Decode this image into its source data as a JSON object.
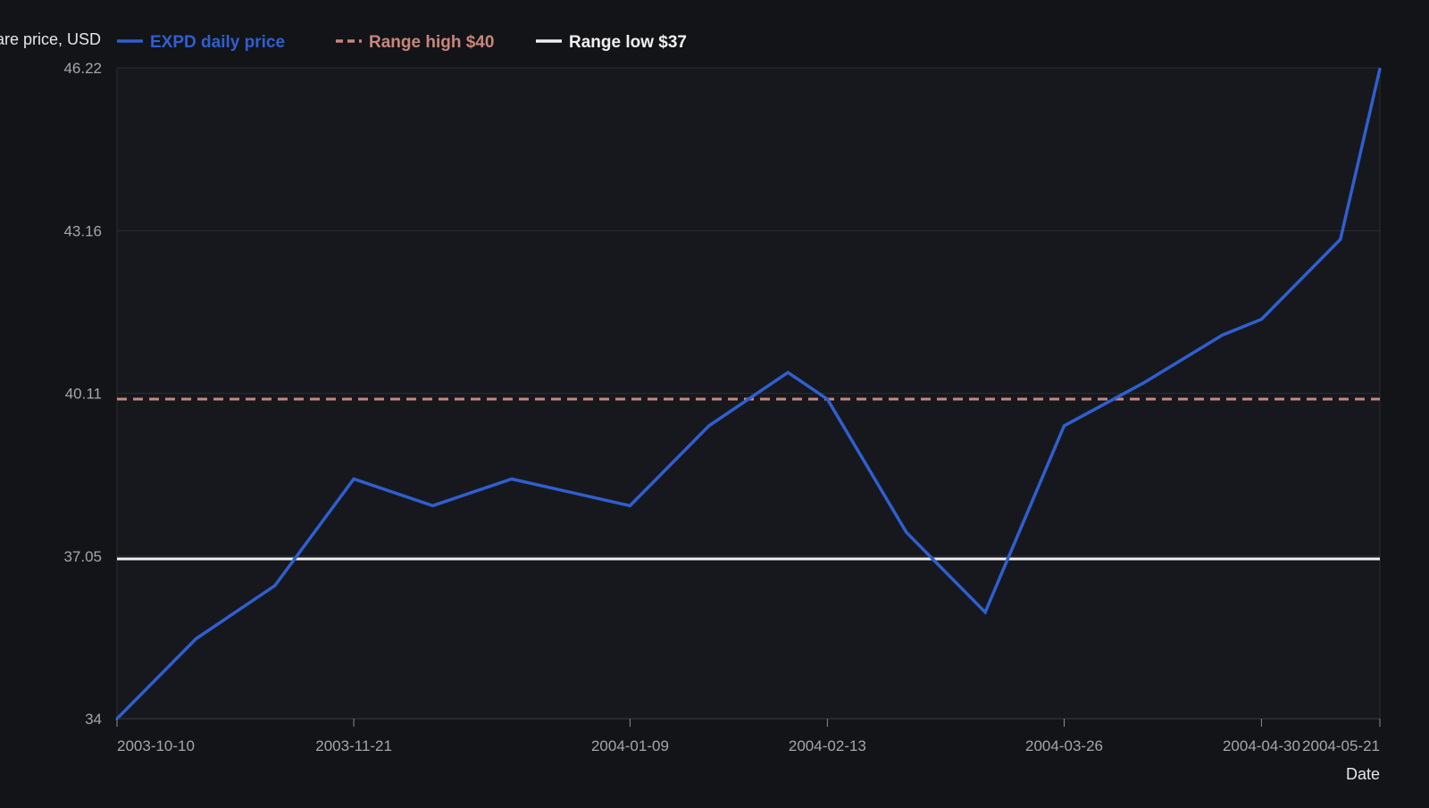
{
  "chart_data": {
    "type": "line",
    "ylabel": "Share price, USD",
    "xlabel": "Date",
    "ylim": [
      34,
      46.22
    ],
    "y_ticks": [
      "34",
      "37.05",
      "40.11",
      "43.16",
      "46.22"
    ],
    "x_ticks": [
      "2003-10-10",
      "2003-11-21",
      "2004-01-09",
      "2004-02-13",
      "2004-03-26",
      "2004-04-30",
      "2004-05-21"
    ],
    "x_range": [
      "2003-10-10",
      "2004-05-21"
    ],
    "grid": true,
    "legend_position": "top-left",
    "series": [
      {
        "name": "EXPD daily price",
        "color": "#2f5fd0",
        "style": "solid",
        "x": [
          "2003-10-10",
          "2003-10-24",
          "2003-11-07",
          "2003-11-21",
          "2003-12-05",
          "2003-12-19",
          "2004-01-09",
          "2004-01-23",
          "2004-02-06",
          "2004-02-13",
          "2004-02-27",
          "2004-03-12",
          "2004-03-26",
          "2004-04-09",
          "2004-04-23",
          "2004-04-30",
          "2004-05-14",
          "2004-05-21"
        ],
        "values": [
          34.0,
          35.5,
          36.5,
          38.5,
          38.0,
          38.5,
          38.0,
          39.5,
          40.5,
          40.0,
          37.5,
          36.0,
          39.5,
          40.3,
          41.2,
          41.5,
          43.0,
          46.2
        ]
      },
      {
        "name": "Range high $40",
        "color": "#c9867a",
        "style": "dashed",
        "y": 40
      },
      {
        "name": "Range low $37",
        "color": "#f0f0f0",
        "style": "solid",
        "y": 37
      }
    ]
  },
  "colors": {
    "background": "#131418",
    "plot_background": "#17181d",
    "grid": "#2a2c31",
    "axis_text": "#a4a6ab",
    "label_text": "#e6e6e6"
  }
}
